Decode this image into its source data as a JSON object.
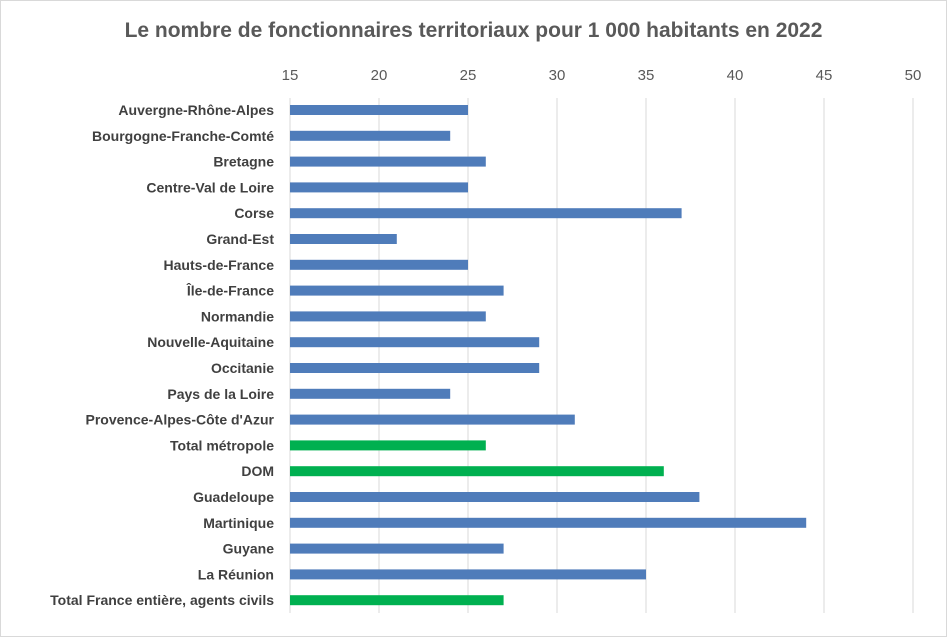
{
  "chart_data": {
    "type": "bar",
    "orientation": "horizontal",
    "title": "Le nombre de fonctionnaires territoriaux pour 1 000 habitants en 2022",
    "xlabel": "",
    "ylabel": "",
    "xlim": [
      15,
      50
    ],
    "ticks": [
      15,
      20,
      25,
      30,
      35,
      40,
      45,
      50
    ],
    "tick_labels": [
      "15",
      "20",
      "25",
      "30",
      "35",
      "40",
      "45",
      "50"
    ],
    "grid": "vertical",
    "axis_position": "top",
    "categories": [
      "Auvergne-Rhône-Alpes",
      "Bourgogne-Franche-Comté",
      "Bretagne",
      "Centre-Val de Loire",
      "Corse",
      "Grand-Est",
      "Hauts-de-France",
      "Île-de-France",
      "Normandie",
      "Nouvelle-Aquitaine",
      "Occitanie",
      "Pays de la Loire",
      "Provence-Alpes-Côte d'Azur",
      "Total métropole",
      "DOM",
      "Guadeloupe",
      "Martinique",
      "Guyane",
      "La Réunion",
      "Total France entière, agents civils"
    ],
    "values": [
      25,
      24,
      26,
      25,
      37,
      21,
      25,
      27,
      26,
      29,
      29,
      24,
      31,
      26,
      36,
      38,
      44,
      27,
      35,
      27
    ],
    "highlight": [
      false,
      false,
      false,
      false,
      false,
      false,
      false,
      false,
      false,
      false,
      false,
      false,
      false,
      true,
      true,
      false,
      false,
      false,
      false,
      true
    ],
    "colors": {
      "default": "#4f7cba",
      "highlight": "#00b050",
      "grid": "#d9d9d9",
      "text": "#595959"
    }
  }
}
